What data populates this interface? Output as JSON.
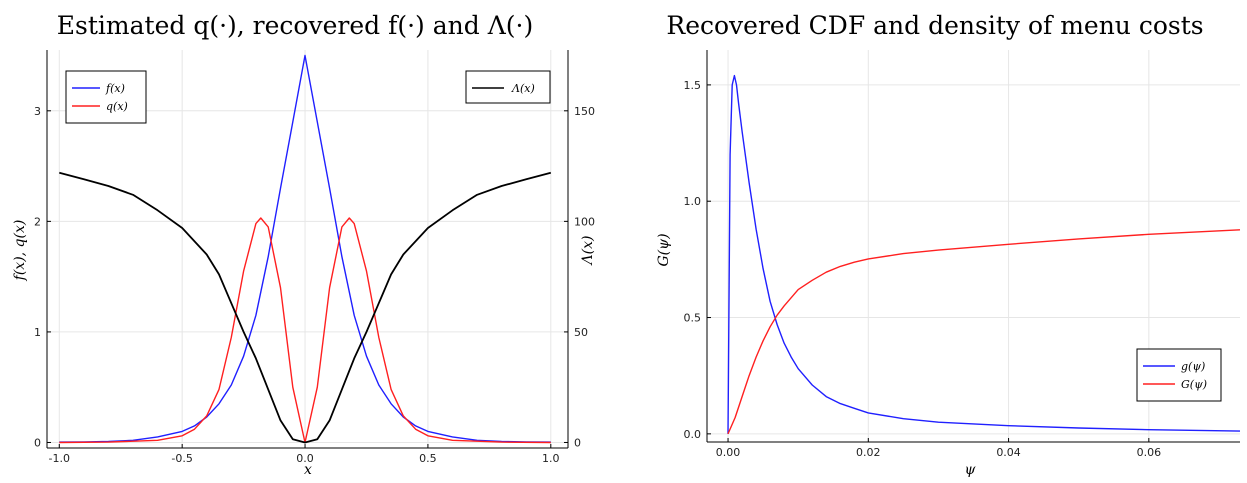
{
  "chart_data": [
    {
      "type": "line",
      "title": "Estimated q(·), recovered f(·) and Λ(·)",
      "xlabel": "x",
      "ylabel": "f(x), q(x)",
      "ylabel_right": "Λ(x)",
      "xlim": [
        -1.05,
        1.07
      ],
      "ylim": [
        -0.05,
        3.55
      ],
      "ylim_right": [
        -2.5,
        177.5
      ],
      "xticks": [
        "-1.0",
        "-0.5",
        "0.0",
        "0.5",
        "1.0"
      ],
      "yticks": [
        "0",
        "1",
        "2",
        "3"
      ],
      "yticks_right": [
        "0",
        "50",
        "100",
        "150"
      ],
      "grid": true,
      "legend_left": {
        "placement": "top-left",
        "entries": [
          "f(x)",
          "q(x)"
        ]
      },
      "legend_right": {
        "placement": "top-right",
        "entries": [
          "Λ(x)"
        ]
      },
      "series": [
        {
          "name": "f(x)",
          "color": "#2020ff",
          "axis": "left",
          "x": [
            -1.0,
            -0.9,
            -0.8,
            -0.7,
            -0.6,
            -0.5,
            -0.45,
            -0.4,
            -0.35,
            -0.3,
            -0.25,
            -0.2,
            -0.15,
            -0.1,
            -0.05,
            0.0,
            0.05,
            0.1,
            0.15,
            0.2,
            0.25,
            0.3,
            0.35,
            0.4,
            0.45,
            0.5,
            0.6,
            0.7,
            0.8,
            0.9,
            1.0
          ],
          "y": [
            0.003,
            0.005,
            0.01,
            0.02,
            0.05,
            0.1,
            0.15,
            0.23,
            0.35,
            0.52,
            0.78,
            1.15,
            1.68,
            2.3,
            2.9,
            3.5,
            2.9,
            2.3,
            1.68,
            1.15,
            0.78,
            0.52,
            0.35,
            0.23,
            0.15,
            0.1,
            0.05,
            0.02,
            0.01,
            0.005,
            0.003
          ]
        },
        {
          "name": "q(x)",
          "color": "#ff2020",
          "axis": "left",
          "x": [
            -1.0,
            -0.8,
            -0.6,
            -0.5,
            -0.45,
            -0.4,
            -0.35,
            -0.3,
            -0.25,
            -0.2,
            -0.18,
            -0.15,
            -0.1,
            -0.05,
            0.0,
            0.05,
            0.1,
            0.15,
            0.18,
            0.2,
            0.25,
            0.3,
            0.35,
            0.4,
            0.45,
            0.5,
            0.6,
            0.8,
            1.0
          ],
          "y": [
            0.0,
            0.003,
            0.02,
            0.06,
            0.12,
            0.24,
            0.48,
            0.95,
            1.55,
            1.98,
            2.03,
            1.95,
            1.4,
            0.5,
            0.0,
            0.5,
            1.4,
            1.95,
            2.03,
            1.98,
            1.55,
            0.95,
            0.48,
            0.24,
            0.12,
            0.06,
            0.02,
            0.003,
            0.0
          ]
        },
        {
          "name": "Λ(x)",
          "color": "#000000",
          "axis": "right",
          "x": [
            -1.0,
            -0.9,
            -0.8,
            -0.7,
            -0.6,
            -0.5,
            -0.4,
            -0.35,
            -0.3,
            -0.25,
            -0.2,
            -0.15,
            -0.1,
            -0.05,
            0.0,
            0.05,
            0.1,
            0.15,
            0.2,
            0.25,
            0.3,
            0.35,
            0.4,
            0.5,
            0.6,
            0.7,
            0.8,
            0.9,
            1.0
          ],
          "y": [
            122,
            119,
            116,
            112,
            105,
            97,
            85,
            76,
            63,
            50,
            38,
            24,
            10,
            1.5,
            0,
            1.5,
            10,
            24,
            38,
            50,
            63,
            76,
            85,
            97,
            105,
            112,
            116,
            119,
            122
          ]
        }
      ]
    },
    {
      "type": "line",
      "title": "Recovered CDF and density of menu costs",
      "xlabel": "ψ",
      "ylabel": "G(ψ)",
      "xlim": [
        -0.003,
        0.073
      ],
      "ylim": [
        -0.035,
        1.65
      ],
      "xticks": [
        "0.00",
        "0.02",
        "0.04",
        "0.06"
      ],
      "yticks": [
        "0.0",
        "0.5",
        "1.0",
        "1.5"
      ],
      "grid": true,
      "legend": {
        "placement": "bottom-right",
        "entries": [
          "g(ψ)",
          "G(ψ)"
        ]
      },
      "series": [
        {
          "name": "g(ψ)",
          "color": "#2020ff",
          "x": [
            0.0,
            0.0003,
            0.0006,
            0.0009,
            0.0012,
            0.0015,
            0.002,
            0.003,
            0.004,
            0.005,
            0.006,
            0.007,
            0.008,
            0.009,
            0.01,
            0.012,
            0.014,
            0.016,
            0.018,
            0.02,
            0.025,
            0.03,
            0.04,
            0.05,
            0.06,
            0.073
          ],
          "y": [
            0.0,
            1.2,
            1.5,
            1.54,
            1.5,
            1.42,
            1.3,
            1.08,
            0.88,
            0.71,
            0.57,
            0.47,
            0.39,
            0.33,
            0.28,
            0.21,
            0.16,
            0.13,
            0.11,
            0.09,
            0.065,
            0.05,
            0.035,
            0.025,
            0.018,
            0.012
          ]
        },
        {
          "name": "G(ψ)",
          "color": "#ff2020",
          "x": [
            0.0,
            0.001,
            0.002,
            0.003,
            0.004,
            0.005,
            0.006,
            0.007,
            0.008,
            0.01,
            0.012,
            0.014,
            0.016,
            0.018,
            0.02,
            0.025,
            0.03,
            0.04,
            0.05,
            0.06,
            0.073
          ],
          "y": [
            0.0,
            0.07,
            0.16,
            0.25,
            0.33,
            0.4,
            0.46,
            0.51,
            0.55,
            0.62,
            0.66,
            0.695,
            0.72,
            0.738,
            0.752,
            0.775,
            0.79,
            0.815,
            0.838,
            0.858,
            0.877
          ]
        }
      ]
    }
  ]
}
